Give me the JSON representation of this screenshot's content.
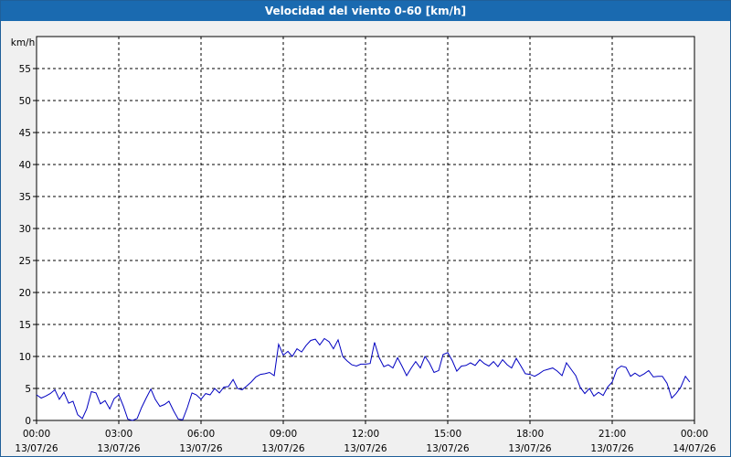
{
  "window": {
    "title": "Velocidad del viento 0-60 [km/h]"
  },
  "chart_data": {
    "type": "line",
    "title": "Velocidad del viento 0-60 [km/h]",
    "ylabel": "km/h",
    "xlabel": "",
    "ylim": [
      0,
      60
    ],
    "yticks": [
      0,
      5,
      10,
      15,
      20,
      25,
      30,
      35,
      40,
      45,
      50,
      55
    ],
    "xlim_hours": [
      0,
      24
    ],
    "xticks": [
      {
        "time": "00:00",
        "date": "13/07/26"
      },
      {
        "time": "03:00",
        "date": "13/07/26"
      },
      {
        "time": "06:00",
        "date": "13/07/26"
      },
      {
        "time": "09:00",
        "date": "13/07/26"
      },
      {
        "time": "12:00",
        "date": "13/07/26"
      },
      {
        "time": "15:00",
        "date": "13/07/26"
      },
      {
        "time": "18:00",
        "date": "13/07/26"
      },
      {
        "time": "21:00",
        "date": "13/07/26"
      },
      {
        "time": "00:00",
        "date": "14/07/26"
      }
    ],
    "grid": true,
    "line_color": "#0000c0",
    "series": [
      {
        "x": [
          0.0,
          0.17,
          0.33,
          0.5,
          0.67,
          0.83,
          1.0,
          1.17,
          1.33,
          1.5,
          1.67,
          1.83,
          2.0,
          2.17,
          2.33,
          2.5,
          2.67,
          2.83,
          3.0,
          3.17,
          3.33,
          3.5,
          3.67,
          3.83,
          4.0,
          4.17,
          4.33,
          4.5,
          4.67,
          4.83,
          5.0,
          5.17,
          5.33,
          5.5,
          5.67,
          5.83,
          6.0,
          6.17,
          6.33,
          6.5,
          6.67,
          6.83,
          7.0,
          7.17,
          7.33,
          7.5,
          7.67,
          7.83,
          8.0,
          8.17,
          8.33,
          8.5,
          8.67,
          8.83,
          9.0,
          9.17,
          9.33,
          9.5,
          9.67,
          9.83,
          10.0,
          10.17,
          10.33,
          10.5,
          10.67,
          10.83,
          11.0,
          11.17,
          11.33,
          11.5,
          11.67,
          11.83,
          12.0,
          12.17,
          12.33,
          12.5,
          12.67,
          12.83,
          13.0,
          13.17,
          13.33,
          13.5,
          13.67,
          13.83,
          14.0,
          14.17,
          14.33,
          14.5,
          14.67,
          14.83,
          15.0,
          15.17,
          15.33,
          15.5,
          15.67,
          15.83,
          16.0,
          16.17,
          16.33,
          16.5,
          16.67,
          16.83,
          17.0,
          17.17,
          17.33,
          17.5,
          17.67,
          17.83,
          18.0,
          18.17,
          18.33,
          18.5,
          18.67,
          18.83,
          19.0,
          19.17,
          19.33,
          19.5,
          19.67,
          19.83,
          20.0,
          20.17,
          20.33,
          20.5,
          20.67,
          20.83,
          21.0,
          21.17,
          21.33,
          21.5,
          21.67,
          21.83,
          22.0,
          22.17,
          22.33,
          22.5,
          22.67,
          22.83,
          23.0,
          23.17,
          23.33,
          23.5,
          23.67,
          23.83
        ],
        "y": [
          4.0,
          3.5,
          3.8,
          4.2,
          4.8,
          3.3,
          4.4,
          2.7,
          3.0,
          0.9,
          0.3,
          1.8,
          4.5,
          4.3,
          2.6,
          3.1,
          1.8,
          3.4,
          4.0,
          2.2,
          0.2,
          0.0,
          0.3,
          2.0,
          3.5,
          4.9,
          3.3,
          2.2,
          2.5,
          3.0,
          1.5,
          0.2,
          0.1,
          2.0,
          4.3,
          4.0,
          3.3,
          4.2,
          4.0,
          5.0,
          4.3,
          5.2,
          5.3,
          6.4,
          5.0,
          4.8,
          5.4,
          6.0,
          6.8,
          7.2,
          7.3,
          7.5,
          7.0,
          11.9,
          10.2,
          10.8,
          10.0,
          11.2,
          10.7,
          11.7,
          12.5,
          12.7,
          11.8,
          12.8,
          12.3,
          11.2,
          12.6,
          10.0,
          9.3,
          8.7,
          8.5,
          8.8,
          8.8,
          8.9,
          12.2,
          9.8,
          8.4,
          8.7,
          8.2,
          9.8,
          8.5,
          7.0,
          8.2,
          9.2,
          8.2,
          10.0,
          9.0,
          7.5,
          7.8,
          10.3,
          10.6,
          9.3,
          7.7,
          8.5,
          8.6,
          9.0,
          8.6,
          9.5,
          8.9,
          8.5,
          9.2,
          8.4,
          9.5,
          8.7,
          8.2,
          9.7,
          8.5,
          7.3,
          7.2,
          6.9,
          7.3,
          7.8,
          8.0,
          8.2,
          7.7,
          7.0,
          9.0,
          8.0,
          7.0,
          5.2,
          4.2,
          5.0,
          3.8,
          4.4,
          3.9,
          5.2,
          6.0,
          8.0,
          8.5,
          8.3,
          6.9,
          7.4,
          6.9,
          7.3,
          7.8,
          6.8,
          6.9,
          6.9,
          5.8,
          3.5,
          4.2,
          5.2,
          6.9,
          6.0
        ]
      }
    ]
  }
}
